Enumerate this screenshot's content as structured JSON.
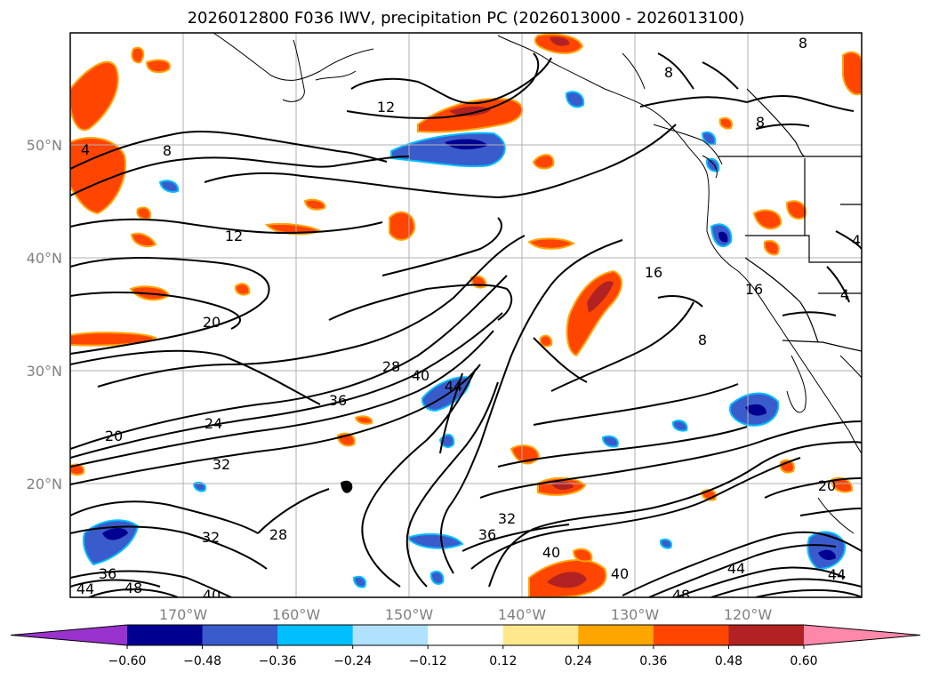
{
  "title": "2026012800 F036 IWV, precipitation PC (2026013000 - 2026013100)",
  "lat_labels": [
    "50°N",
    "40°N",
    "30°N",
    "20°N"
  ],
  "lon_labels": [
    "170°W",
    "160°W",
    "150°W",
    "140°W",
    "130°W",
    "120°W"
  ],
  "colorbar": {
    "tick_labels": [
      "−0.60",
      "−0.48",
      "−0.36",
      "−0.24",
      "−0.12",
      "0.12",
      "0.24",
      "0.36",
      "0.48",
      "0.60"
    ],
    "colors": [
      "#9a32cd",
      "#000090",
      "#3a5bcc",
      "#00bfff",
      "#b0e2ff",
      "#ffffff",
      "#ffe88c",
      "#ffa500",
      "#ff4500",
      "#b22222",
      "#ff88aa"
    ]
  },
  "contour_labels": [
    {
      "text": "12"
    },
    {
      "text": "8"
    },
    {
      "text": "4"
    },
    {
      "text": "8"
    },
    {
      "text": "8"
    },
    {
      "text": "12"
    },
    {
      "text": "16"
    },
    {
      "text": "16"
    },
    {
      "text": "8"
    },
    {
      "text": "4"
    },
    {
      "text": "4"
    },
    {
      "text": "20"
    },
    {
      "text": "28"
    },
    {
      "text": "40"
    },
    {
      "text": "44"
    },
    {
      "text": "36"
    },
    {
      "text": "24"
    },
    {
      "text": "20"
    },
    {
      "text": "32"
    },
    {
      "text": "32"
    },
    {
      "text": "28"
    },
    {
      "text": "32"
    },
    {
      "text": "36"
    },
    {
      "text": "40"
    },
    {
      "text": "40"
    },
    {
      "text": "44"
    },
    {
      "text": "44"
    },
    {
      "text": "20"
    },
    {
      "text": "36"
    },
    {
      "text": "48"
    },
    {
      "text": "40"
    },
    {
      "text": "48"
    },
    {
      "text": "44"
    },
    {
      "text": "8"
    }
  ]
}
